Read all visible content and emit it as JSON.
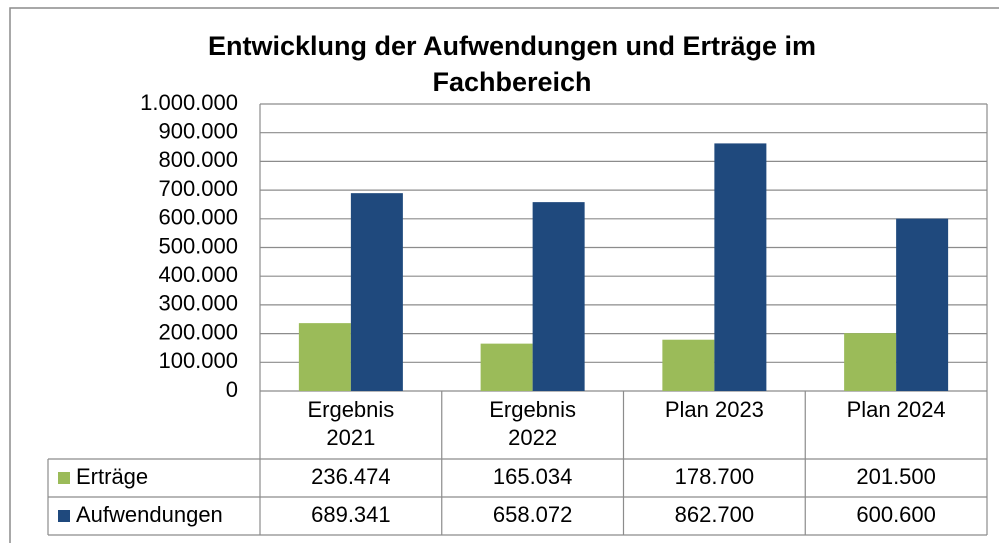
{
  "chart_data": {
    "type": "bar",
    "title": "Entwicklung der Aufwendungen und Erträge im Fachbereich",
    "categories": [
      "Ergebnis 2021",
      "Ergebnis 2022",
      "Plan 2023",
      "Plan 2024"
    ],
    "series": [
      {
        "name": "Erträge",
        "color": "#9bbb59",
        "values": [
          236474,
          165034,
          178700,
          201500
        ],
        "value_labels": [
          "236.474",
          "165.034",
          "178.700",
          "201.500"
        ]
      },
      {
        "name": "Aufwendungen",
        "color": "#1f497d",
        "values": [
          689341,
          658072,
          862700,
          600600
        ],
        "value_labels": [
          "689.341",
          "658.072",
          "862.700",
          "600.600"
        ]
      }
    ],
    "ylim": [
      0,
      1000000
    ],
    "yticks": [
      0,
      {
        "value": 100000,
        "label": "100.000"
      },
      {
        "value": 200000,
        "label": "200.000"
      },
      {
        "value": 300000,
        "label": "300.000"
      },
      {
        "value": 400000,
        "label": "400.000"
      },
      {
        "value": 500000,
        "label": "500.000"
      },
      {
        "value": 600000,
        "label": "600.000"
      },
      {
        "value": 700000,
        "label": "700.000"
      },
      {
        "value": 800000,
        "label": "800.000"
      },
      {
        "value": 900000,
        "label": "900.000"
      },
      {
        "value": 1000000,
        "label": "1.000.000"
      }
    ],
    "grid": true
  }
}
